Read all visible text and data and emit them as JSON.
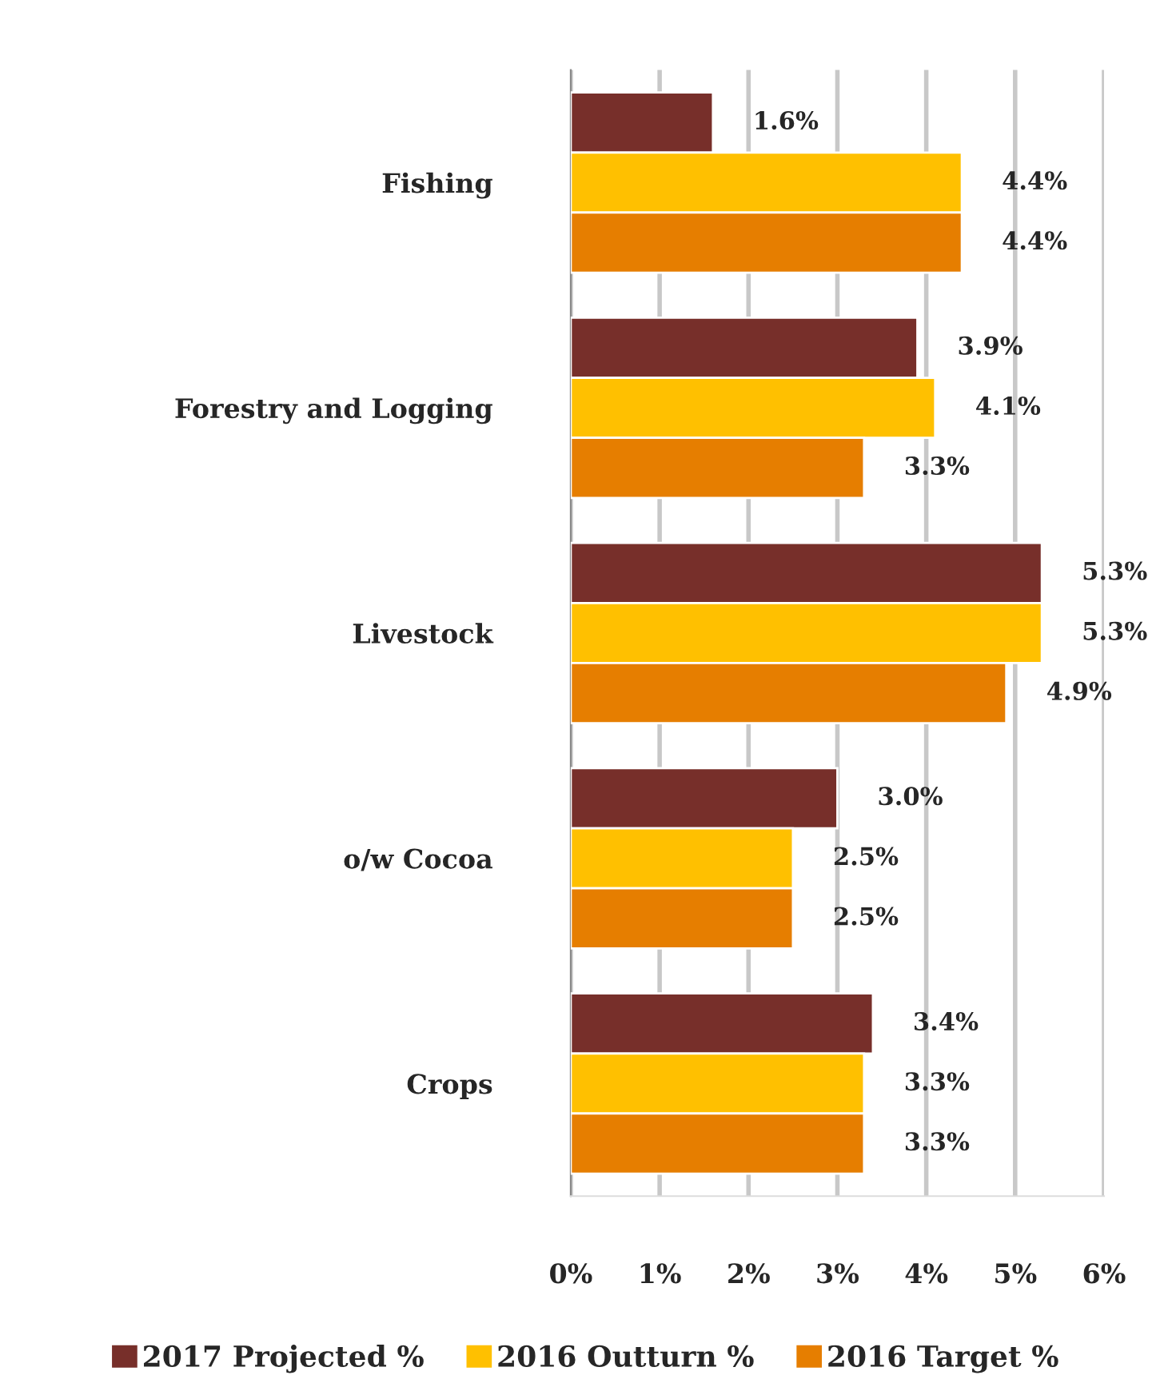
{
  "chart_data": {
    "type": "bar",
    "orientation": "horizontal",
    "categories": [
      "Fishing",
      "Forestry and Logging",
      "Livestock",
      "o/w Cocoa",
      "Crops"
    ],
    "series": [
      {
        "name": "2017 Projected %",
        "color": "#772f2a",
        "values": [
          1.6,
          3.9,
          5.3,
          3.0,
          3.4
        ],
        "value_labels": [
          "1.6%",
          "3.9%",
          "5.3%",
          "3.0%",
          "3.4%"
        ]
      },
      {
        "name": "2016 Outturn %",
        "color": "#ffc000",
        "values": [
          4.4,
          4.1,
          5.3,
          2.5,
          3.3
        ],
        "value_labels": [
          "4.4%",
          "4.1%",
          "5.3%",
          "2.5%",
          "3.3%"
        ]
      },
      {
        "name": "2016 Target %",
        "color": "#e67e00",
        "values": [
          4.4,
          3.3,
          4.9,
          2.5,
          3.3
        ],
        "value_labels": [
          "4.4%",
          "3.3%",
          "4.9%",
          "2.5%",
          "3.3%"
        ]
      }
    ],
    "xlim": [
      0,
      6
    ],
    "xticks": [
      {
        "value": 0,
        "label": "0%"
      },
      {
        "value": 1,
        "label": "1%"
      },
      {
        "value": 2,
        "label": "2%"
      },
      {
        "value": 3,
        "label": "3%"
      },
      {
        "value": 4,
        "label": "4%"
      },
      {
        "value": 5,
        "label": "5%"
      },
      {
        "value": 6,
        "label": "6%"
      }
    ],
    "grid": "x",
    "legend": "bottom"
  }
}
